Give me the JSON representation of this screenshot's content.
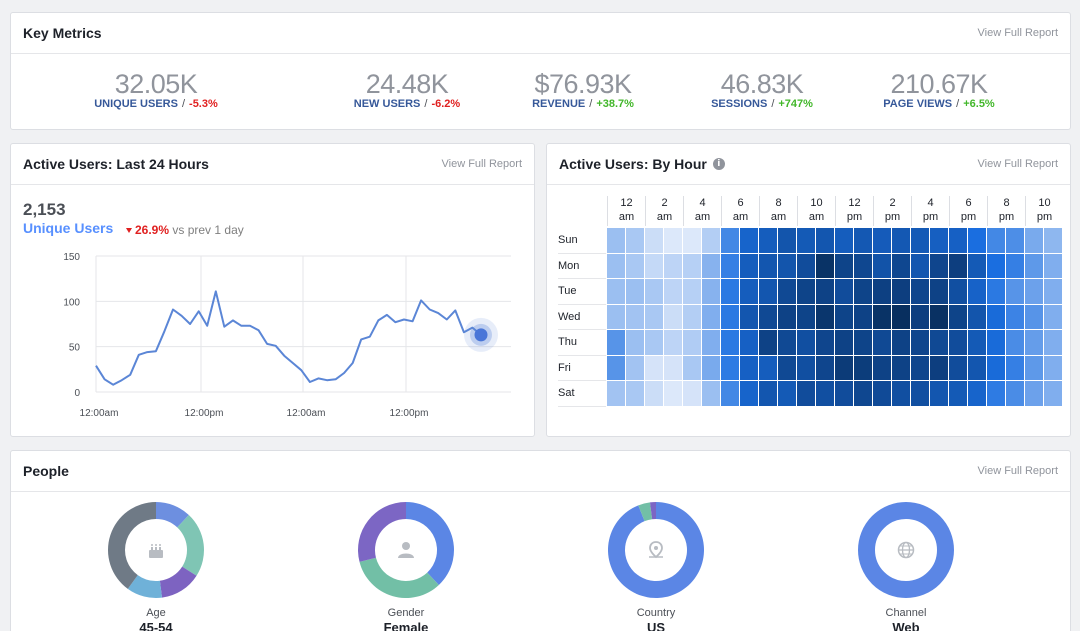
{
  "key_metrics": {
    "title": "Key Metrics",
    "report_link": "View Full Report",
    "metrics": [
      {
        "value": "32.05K",
        "label": "UNIQUE USERS",
        "sep": "/",
        "change": "-5.3%",
        "trend": "down"
      },
      {
        "value": "24.48K",
        "label": "NEW USERS",
        "sep": "/",
        "change": "-6.2%",
        "trend": "down"
      },
      {
        "value": "$76.93K",
        "label": "REVENUE",
        "sep": "/",
        "change": "+38.7%",
        "trend": "up"
      },
      {
        "value": "46.83K",
        "label": "SESSIONS",
        "sep": "/",
        "change": "+747%",
        "trend": "up"
      },
      {
        "value": "210.67K",
        "label": "PAGE VIEWS",
        "sep": "/",
        "change": "+6.5%",
        "trend": "up"
      }
    ]
  },
  "active_users_24h": {
    "title": "Active Users: Last 24 Hours",
    "report_link": "View Full Report",
    "count": "2,153",
    "count_label": "Unique Users",
    "change_pct": "26.9%",
    "change_text": "vs prev 1 day",
    "change_trend": "down"
  },
  "active_users_hour": {
    "title": "Active Users: By Hour",
    "report_link": "View Full Report",
    "info_icon": "info-icon"
  },
  "people": {
    "title": "People",
    "report_link": "View Full Report",
    "donuts": [
      {
        "label": "Age",
        "value": "45-54",
        "icon": "birthday-cake-icon"
      },
      {
        "label": "Gender",
        "value": "Female",
        "icon": "person-icon"
      },
      {
        "label": "Country",
        "value": "US",
        "icon": "location-pin-icon"
      },
      {
        "label": "Channel",
        "value": "Web",
        "icon": "globe-icon"
      }
    ]
  },
  "chart_data": [
    {
      "type": "line",
      "x_tick_labels": [
        "12:00am",
        "12:00pm",
        "12:00am",
        "12:00pm"
      ],
      "y_ticks": [
        0,
        50,
        100,
        150
      ],
      "ylim": [
        0,
        150
      ],
      "grid": true,
      "color": "#5b86d6",
      "series": [
        {
          "values": [
            29,
            14,
            8,
            13,
            19,
            41,
            44,
            45,
            67,
            91,
            84,
            75,
            89,
            73,
            111,
            72,
            79,
            73,
            73,
            68,
            53,
            51,
            40,
            32,
            24,
            11,
            15,
            13,
            14,
            21,
            32,
            58,
            61,
            79,
            85,
            77,
            80,
            78,
            101,
            91,
            87,
            80,
            90,
            66,
            71,
            63
          ]
        }
      ],
      "marker_last_point": true
    },
    {
      "type": "heatmap",
      "rows": [
        "Sun",
        "Mon",
        "Tue",
        "Wed",
        "Thu",
        "Fri",
        "Sat"
      ],
      "column_labels": [
        {
          "top": "12",
          "bottom": "am"
        },
        {
          "top": "2",
          "bottom": "am"
        },
        {
          "top": "4",
          "bottom": "am"
        },
        {
          "top": "6",
          "bottom": "am"
        },
        {
          "top": "8",
          "bottom": "am"
        },
        {
          "top": "10",
          "bottom": "am"
        },
        {
          "top": "12",
          "bottom": "pm"
        },
        {
          "top": "2",
          "bottom": "pm"
        },
        {
          "top": "4",
          "bottom": "pm"
        },
        {
          "top": "6",
          "bottom": "pm"
        },
        {
          "top": "8",
          "bottom": "pm"
        },
        {
          "top": "10",
          "bottom": "pm"
        }
      ],
      "color_low": "#e6eefb",
      "color_high": "#072a55",
      "values": [
        [
          0.22,
          0.18,
          0.08,
          0.03,
          0.03,
          0.15,
          0.48,
          0.66,
          0.7,
          0.75,
          0.72,
          0.74,
          0.7,
          0.73,
          0.71,
          0.73,
          0.72,
          0.69,
          0.68,
          0.6,
          0.48,
          0.45,
          0.32,
          0.26
        ],
        [
          0.22,
          0.18,
          0.1,
          0.12,
          0.14,
          0.28,
          0.52,
          0.7,
          0.74,
          0.75,
          0.8,
          0.95,
          0.85,
          0.83,
          0.76,
          0.83,
          0.74,
          0.84,
          0.88,
          0.72,
          0.6,
          0.52,
          0.4,
          0.3
        ],
        [
          0.22,
          0.22,
          0.18,
          0.12,
          0.14,
          0.28,
          0.55,
          0.7,
          0.74,
          0.82,
          0.85,
          0.86,
          0.8,
          0.85,
          0.87,
          0.88,
          0.84,
          0.86,
          0.78,
          0.67,
          0.55,
          0.42,
          0.36,
          0.3
        ],
        [
          0.22,
          0.2,
          0.18,
          0.08,
          0.15,
          0.3,
          0.55,
          0.74,
          0.82,
          0.86,
          0.85,
          0.93,
          0.85,
          0.86,
          0.95,
          0.97,
          0.88,
          0.96,
          0.85,
          0.75,
          0.62,
          0.5,
          0.42,
          0.3
        ],
        [
          0.42,
          0.22,
          0.18,
          0.12,
          0.16,
          0.3,
          0.55,
          0.68,
          0.86,
          0.82,
          0.78,
          0.84,
          0.86,
          0.85,
          0.82,
          0.86,
          0.84,
          0.82,
          0.8,
          0.72,
          0.62,
          0.46,
          0.38,
          0.3
        ],
        [
          0.42,
          0.2,
          0.05,
          0.05,
          0.18,
          0.32,
          0.54,
          0.68,
          0.7,
          0.82,
          0.78,
          0.84,
          0.9,
          0.89,
          0.86,
          0.86,
          0.84,
          0.88,
          0.8,
          0.74,
          0.62,
          0.52,
          0.4,
          0.3
        ],
        [
          0.2,
          0.18,
          0.08,
          0.03,
          0.05,
          0.22,
          0.48,
          0.66,
          0.74,
          0.72,
          0.8,
          0.78,
          0.8,
          0.83,
          0.81,
          0.78,
          0.78,
          0.74,
          0.72,
          0.66,
          0.54,
          0.46,
          0.36,
          0.3
        ]
      ]
    },
    {
      "type": "pie",
      "label": "Age",
      "slices": [
        {
          "value": 0.12,
          "color": "#6d8fe0"
        },
        {
          "value": 0.22,
          "color": "#7fc5b4"
        },
        {
          "value": 0.14,
          "color": "#7d63c1"
        },
        {
          "value": 0.12,
          "color": "#6fb1d8"
        },
        {
          "value": 0.4,
          "color": "#6f7a86"
        }
      ]
    },
    {
      "type": "pie",
      "label": "Gender",
      "slices": [
        {
          "value": 0.38,
          "color": "#5b86e5"
        },
        {
          "value": 0.33,
          "color": "#72bfa6"
        },
        {
          "value": 0.29,
          "color": "#7c66c4"
        }
      ]
    },
    {
      "type": "pie",
      "label": "Country",
      "slices": [
        {
          "value": 0.94,
          "color": "#5b86e5"
        },
        {
          "value": 0.04,
          "color": "#72bfa6"
        },
        {
          "value": 0.02,
          "color": "#7c66c4"
        }
      ]
    },
    {
      "type": "pie",
      "label": "Channel",
      "slices": [
        {
          "value": 1.0,
          "color": "#5b86e5"
        }
      ]
    }
  ]
}
